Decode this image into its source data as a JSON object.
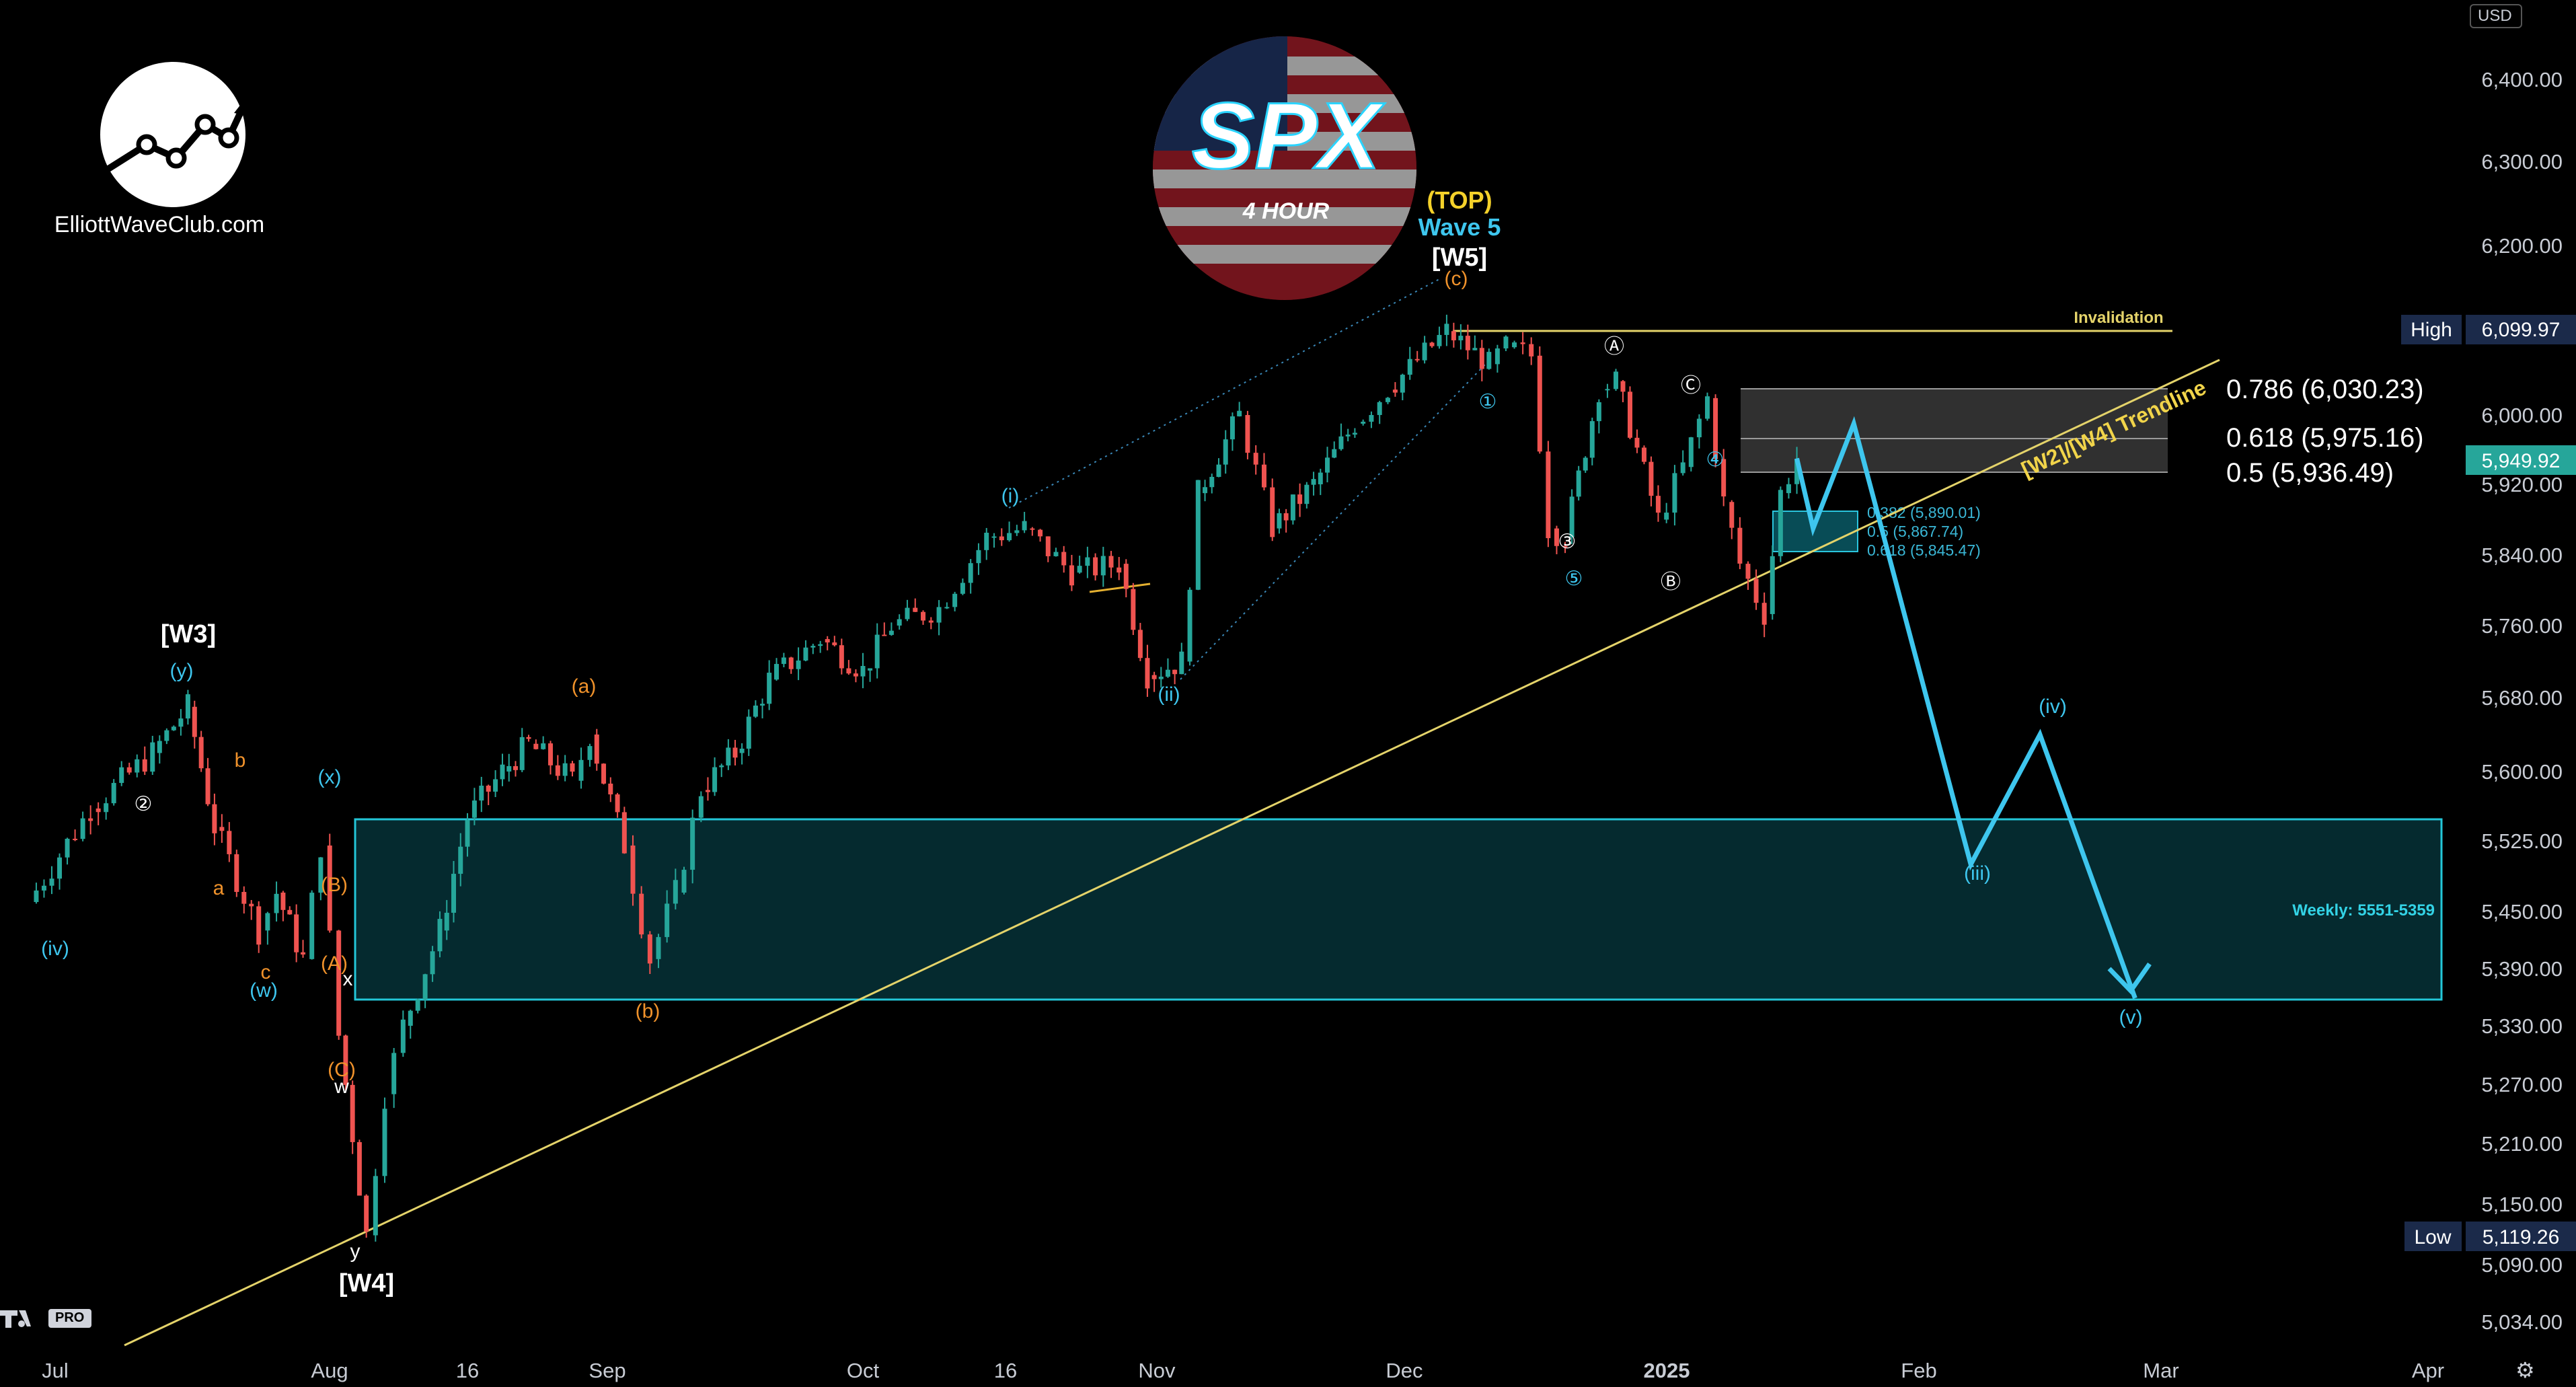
{
  "header": {
    "site_name": "ElliottWaveClub.com",
    "badge_ticker": "SPX",
    "badge_timeframe": "4 HOUR",
    "currency": "USD",
    "tv_badge": "PRO"
  },
  "colors": {
    "background": "#000000",
    "up_candle": "#26a69a",
    "down_candle": "#ef5350",
    "trendline": "#e4d36a",
    "projection": "#3ec6ee",
    "zone": "#0d8fa0",
    "orange_labels": "#f0922b",
    "white_labels": "#ffffff"
  },
  "price_axis": {
    "labels": [
      "6,400.00",
      "6,300.00",
      "6,200.00",
      "6,000.00",
      "5,920.00",
      "5,840.00",
      "5,760.00",
      "5,680.00",
      "5,600.00",
      "5,525.00",
      "5,450.00",
      "5,390.00",
      "5,330.00",
      "5,270.00",
      "5,210.00",
      "5,150.00",
      "5,090.00",
      "5,034.00"
    ],
    "high_label": "High",
    "high_value": "6,099.97",
    "low_label": "Low",
    "low_value": "5,119.26",
    "last_value": "5,949.92"
  },
  "time_axis": {
    "labels": [
      "Jul",
      "Aug",
      "16",
      "Sep",
      "Oct",
      "16",
      "Nov",
      "Dec",
      "2025",
      "Feb",
      "Mar",
      "Apr"
    ]
  },
  "annotations": {
    "top_label": "(TOP)",
    "wave5_label": "Wave 5",
    "w5_label": "[W5]",
    "w3_label": "[W3]",
    "w4_label": "[W4]",
    "invalidation": "Invalidation",
    "trendline_label": "[W2]/[W4] Trendline",
    "weekly_zone": "Weekly: 5551-5359",
    "fib_786": "0.786 (6,030.23)",
    "fib_618": "0.618 (5,975.16)",
    "fib_5": "0.5 (5,936.49)",
    "fib_small_382": "0.382 (5,890.01)",
    "fib_small_5": "0.5 (5,867.74)",
    "fib_small_618": "0.618 (5,845.47)",
    "wave_labels": [
      {
        "t": "(iv)"
      },
      {
        "t": "(w)"
      },
      {
        "t": "(x)"
      },
      {
        "t": "(y)"
      },
      {
        "t": "(B)"
      },
      {
        "t": "(A)"
      },
      {
        "t": "(C)"
      },
      {
        "t": "w"
      },
      {
        "t": "x"
      },
      {
        "t": "y"
      },
      {
        "t": "a"
      },
      {
        "t": "b"
      },
      {
        "t": "c"
      },
      {
        "t": "(a)"
      },
      {
        "t": "(b)"
      },
      {
        "t": "(c)"
      },
      {
        "t": "(i)"
      },
      {
        "t": "(ii)"
      },
      {
        "t": "(iii)"
      },
      {
        "t": "(iv)"
      },
      {
        "t": "(v)"
      },
      {
        "t": "①"
      },
      {
        "t": "②"
      },
      {
        "t": "③"
      },
      {
        "t": "④"
      },
      {
        "t": "⑤"
      },
      {
        "t": "Ⓐ"
      },
      {
        "t": "Ⓑ"
      },
      {
        "t": "Ⓒ"
      }
    ]
  },
  "chart_data": {
    "type": "candlestick",
    "title": "SPX 4 HOUR",
    "y_range": [
      5000,
      6480
    ],
    "x_range": [
      "2024-06-27",
      "2025-04-08"
    ],
    "ohlc_key_points": [
      {
        "date": "2024-07-16",
        "price": 5670,
        "label": "[W3]"
      },
      {
        "date": "2024-08-05",
        "price": 5119.26,
        "label": "[W4] Low"
      },
      {
        "date": "2024-12-06",
        "price": 6099.97,
        "label": "[W5] High"
      },
      {
        "date": "2025-01-13",
        "price": 5773,
        "label": "(i)"
      },
      {
        "date": "2025-01-17",
        "price": 5949.92,
        "label": "last"
      }
    ],
    "projection_path": [
      {
        "date": "2025-01-17",
        "price": 5949.92
      },
      {
        "date": "2025-01-19",
        "price": 5870
      },
      {
        "date": "2025-01-24",
        "price": 5990,
        "label": "(ii)"
      },
      {
        "date": "2025-02-07",
        "price": 5500,
        "label": "(iii)"
      },
      {
        "date": "2025-02-15",
        "price": 5640,
        "label": "(iv)"
      },
      {
        "date": "2025-02-26",
        "price": 5359,
        "label": "(v)"
      }
    ],
    "zones": [
      {
        "name": "Weekly: 5551-5359",
        "from": 5359,
        "to": 5551
      },
      {
        "name": "0.5-0.786 retracement",
        "from": 5936.49,
        "to": 6030.23
      }
    ],
    "levels": [
      {
        "name": "Invalidation",
        "price": 6099.97
      },
      {
        "name": "0.786",
        "price": 6030.23
      },
      {
        "name": "0.618",
        "price": 5975.16
      },
      {
        "name": "0.5",
        "price": 5936.49
      },
      {
        "name": "0.382",
        "price": 5890.01
      },
      {
        "name": "0.5",
        "price": 5867.74
      },
      {
        "name": "0.618",
        "price": 5845.47
      }
    ],
    "trendline": {
      "name": "[W2]/[W4] Trendline",
      "from": {
        "date": "2024-07-01",
        "price": 5000
      },
      "to": {
        "date": "2025-02-01",
        "price": 6065
      }
    }
  }
}
